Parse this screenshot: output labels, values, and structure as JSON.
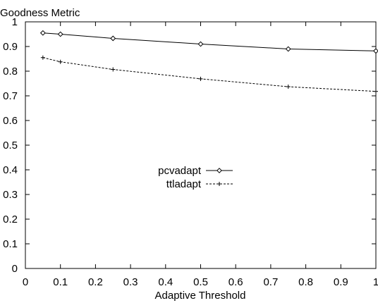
{
  "chart_data": {
    "type": "line",
    "title": "",
    "ylabel": "Goodness Metric",
    "xlabel": "Adaptive Threshold",
    "xlim": [
      0,
      1
    ],
    "ylim": [
      0,
      1
    ],
    "xticks": [
      0,
      0.1,
      0.2,
      0.3,
      0.4,
      0.5,
      0.6,
      0.7,
      0.8,
      0.9,
      1
    ],
    "xtick_labels": [
      "0",
      "0.1",
      "0.2",
      "0.3",
      "0.4",
      "0.5",
      "0.6",
      "0.7",
      "0.8",
      "0.9",
      "1"
    ],
    "yticks": [
      0,
      0.1,
      0.2,
      0.3,
      0.4,
      0.5,
      0.6,
      0.7,
      0.8,
      0.9,
      1
    ],
    "ytick_labels": [
      "0",
      "0.1",
      "0.2",
      "0.3",
      "0.4",
      "0.5",
      "0.6",
      "0.7",
      "0.8",
      "0.9",
      "1"
    ],
    "grid": false,
    "legend_position": "center-left",
    "series": [
      {
        "name": "pcvadapt",
        "line_style": "solid",
        "marker": "diamond",
        "x": [
          0.05,
          0.1,
          0.25,
          0.5,
          0.75,
          1.0
        ],
        "y": [
          0.955,
          0.95,
          0.933,
          0.91,
          0.89,
          0.882
        ]
      },
      {
        "name": "ttladapt",
        "line_style": "dashed",
        "marker": "plus",
        "x": [
          0.05,
          0.1,
          0.25,
          0.5,
          0.75,
          1.0
        ],
        "y": [
          0.855,
          0.838,
          0.807,
          0.769,
          0.737,
          0.718
        ]
      }
    ]
  }
}
